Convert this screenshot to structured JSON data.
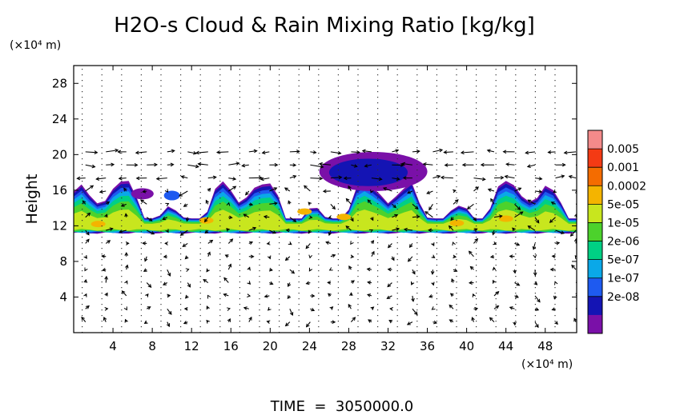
{
  "chart_data": {
    "type": "heatmap",
    "title": "H2O-s Cloud & Rain Mixing Ratio [kg/kg]",
    "ylabel": "Height",
    "yunit": "(×10⁴ m)",
    "xunit": "(×10⁴ m)",
    "xlim": [
      0,
      51.2
    ],
    "ylim": [
      0,
      30
    ],
    "xticks": [
      "4",
      "8",
      "12",
      "16",
      "20",
      "24",
      "28",
      "32",
      "36",
      "40",
      "44",
      "48"
    ],
    "yticks": [
      "4",
      "8",
      "12",
      "16",
      "20",
      "24",
      "28"
    ],
    "xtick_values": [
      4,
      8,
      12,
      16,
      20,
      24,
      28,
      32,
      36,
      40,
      44,
      48
    ],
    "ytick_values": [
      4,
      8,
      12,
      16,
      20,
      24,
      28
    ],
    "colorbar": {
      "labels": [
        "0.005",
        "0.001",
        "0.0002",
        "5e-05",
        "1e-05",
        "2e-06",
        "5e-07",
        "1e-07",
        "2e-08"
      ],
      "colors": [
        "#f48a8a",
        "#f43a14",
        "#f46c00",
        "#f4b400",
        "#c8e61e",
        "#4cd22c",
        "#00d084",
        "#0aa8e8",
        "#1e5af0",
        "#1414b4",
        "#7a10a8"
      ]
    },
    "cloud_layer": {
      "base_height": 11.2,
      "top_height": 16.4,
      "upper_band": [
        17.0,
        19.2
      ],
      "dominant_levels": [
        "5e-05",
        "1e-05",
        "2e-06",
        "5e-07",
        "1e-07",
        "2e-08"
      ]
    },
    "vector_field": "wind arrows on regular grid"
  },
  "footer": {
    "time_label": "TIME  =  3050000.0"
  }
}
